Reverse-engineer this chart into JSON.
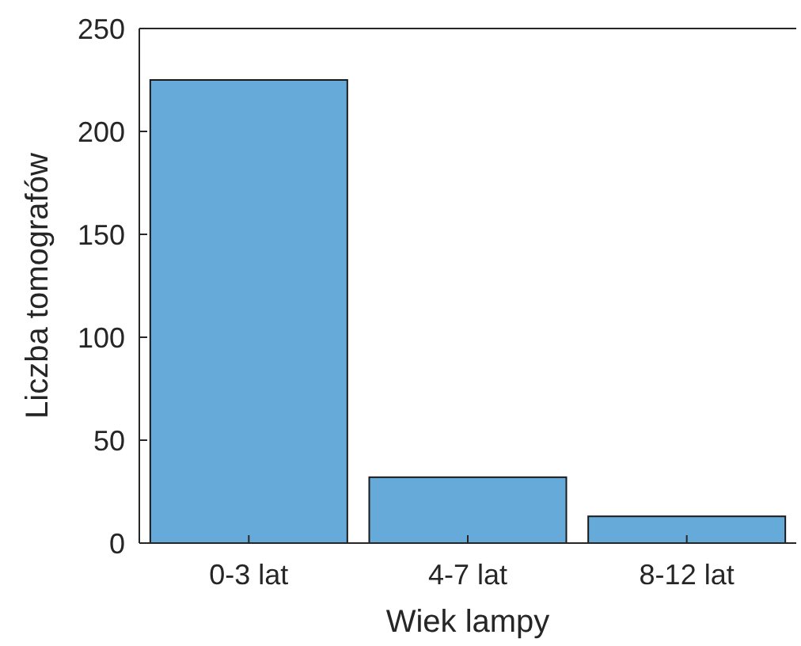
{
  "chart_data": {
    "type": "bar",
    "xlabel": "Wiek lampy",
    "ylabel": "Liczba tomografów",
    "categories": [
      "0-3 lat",
      "4-7 lat",
      "8-12 lat"
    ],
    "values": [
      225,
      32,
      13
    ],
    "color": "#66aad9",
    "ylim": [
      0,
      250
    ],
    "yticks": [
      0,
      50,
      100,
      150,
      200,
      250
    ],
    "grid": false
  }
}
